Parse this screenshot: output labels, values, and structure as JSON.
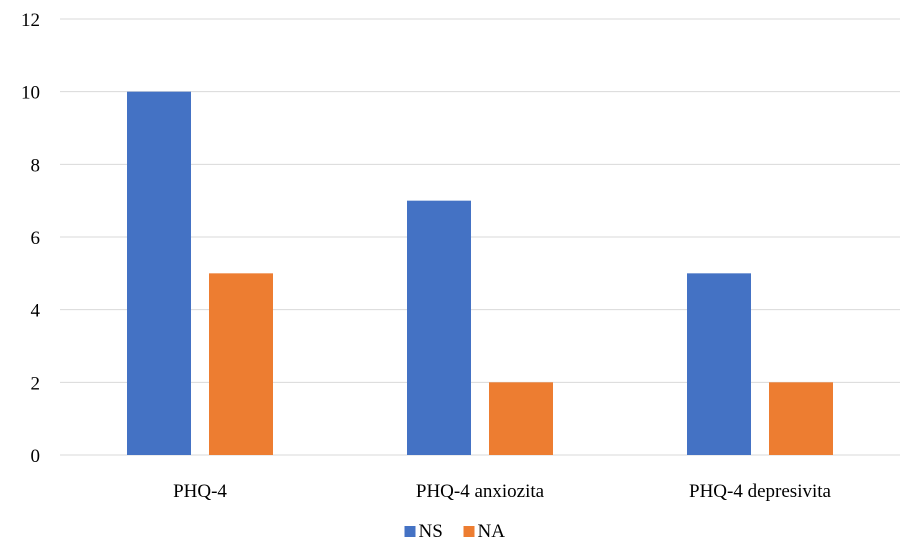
{
  "chart_data": {
    "type": "bar",
    "title": "",
    "xlabel": "",
    "ylabel": "",
    "categories": [
      "PHQ-4",
      "PHQ-4 anxiozita",
      "PHQ-4 depresivita"
    ],
    "series": [
      {
        "name": "NS",
        "values": [
          10,
          7,
          5
        ],
        "color": "#4472c4"
      },
      {
        "name": "NA",
        "values": [
          5,
          2,
          2
        ],
        "color": "#ed7d31"
      }
    ],
    "ylim": [
      0,
      12
    ],
    "yticks": [
      0,
      2,
      4,
      6,
      8,
      10,
      12
    ],
    "grid": true,
    "legend_position": "bottom"
  }
}
